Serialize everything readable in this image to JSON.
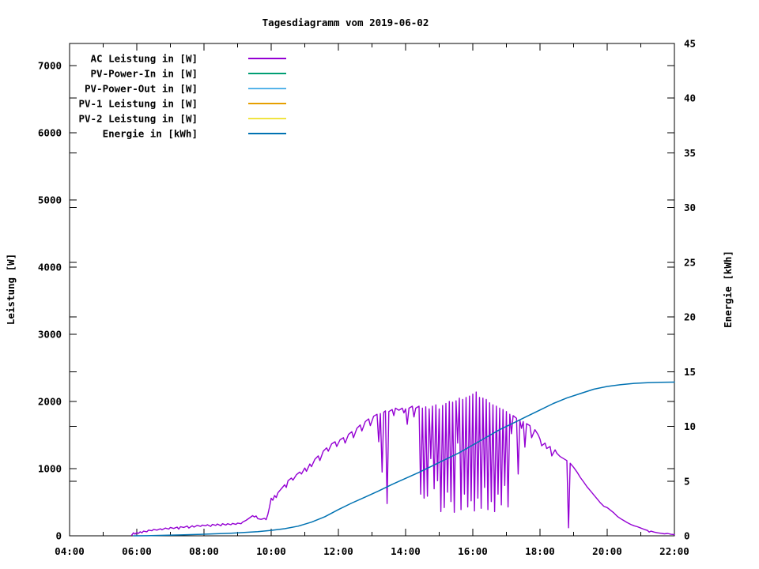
{
  "chart_data": {
    "type": "line",
    "title": "Tagesdiagramm vom 2019-06-02",
    "x_axis": {
      "range_hours": [
        4,
        22
      ],
      "major": [
        {
          "hour": 4,
          "label": "04:00"
        },
        {
          "hour": 6,
          "label": "06:00"
        },
        {
          "hour": 8,
          "label": "08:00"
        },
        {
          "hour": 10,
          "label": "10:00"
        },
        {
          "hour": 12,
          "label": "12:00"
        },
        {
          "hour": 14,
          "label": "14:00"
        },
        {
          "hour": 16,
          "label": "16:00"
        },
        {
          "hour": 18,
          "label": "18:00"
        },
        {
          "hour": 20,
          "label": "20:00"
        },
        {
          "hour": 22,
          "label": "22:00"
        }
      ],
      "minor_hours": [
        5,
        7,
        9,
        11,
        13,
        15,
        17,
        19,
        21
      ]
    },
    "y_left": {
      "label": "Leistung [W]",
      "range": [
        0,
        7330
      ],
      "ticks": [
        0,
        1000,
        2000,
        3000,
        4000,
        5000,
        6000,
        7000
      ]
    },
    "y_right": {
      "label": "Energie [kWh]",
      "range": [
        0,
        45
      ],
      "ticks": [
        0,
        5,
        10,
        15,
        20,
        25,
        30,
        35,
        40,
        45
      ]
    },
    "legend": [
      {
        "label": "AC Leistung in [W]",
        "color": "#9400d3"
      },
      {
        "label": "PV-Power-In in [W]",
        "color": "#009e73"
      },
      {
        "label": "PV-Power-Out in [W]",
        "color": "#56b4e9"
      },
      {
        "label": "PV-1 Leistung in [W]",
        "color": "#e69f00"
      },
      {
        "label": "PV-2 Leistung in [W]",
        "color": "#f0e442"
      },
      {
        "label": "Energie in [kWh]",
        "color": "#0072b2"
      }
    ],
    "series": [
      {
        "name": "AC Leistung in [W]",
        "color": "#9400d3",
        "axis": "left",
        "width": 1.4,
        "points": [
          [
            5.85,
            10
          ],
          [
            5.9,
            45
          ],
          [
            5.95,
            25
          ],
          [
            6.0,
            50
          ],
          [
            6.05,
            35
          ],
          [
            6.1,
            60
          ],
          [
            6.15,
            45
          ],
          [
            6.2,
            70
          ],
          [
            6.3,
            60
          ],
          [
            6.35,
            85
          ],
          [
            6.45,
            75
          ],
          [
            6.5,
            95
          ],
          [
            6.6,
            85
          ],
          [
            6.7,
            105
          ],
          [
            6.75,
            90
          ],
          [
            6.85,
            115
          ],
          [
            6.95,
            100
          ],
          [
            7.0,
            125
          ],
          [
            7.1,
            110
          ],
          [
            7.2,
            130
          ],
          [
            7.25,
            100
          ],
          [
            7.3,
            135
          ],
          [
            7.4,
            125
          ],
          [
            7.5,
            145
          ],
          [
            7.55,
            115
          ],
          [
            7.65,
            150
          ],
          [
            7.7,
            130
          ],
          [
            7.8,
            155
          ],
          [
            7.9,
            140
          ],
          [
            7.95,
            160
          ],
          [
            8.05,
            150
          ],
          [
            8.1,
            165
          ],
          [
            8.2,
            140
          ],
          [
            8.25,
            170
          ],
          [
            8.35,
            155
          ],
          [
            8.4,
            175
          ],
          [
            8.5,
            150
          ],
          [
            8.55,
            180
          ],
          [
            8.65,
            160
          ],
          [
            8.7,
            180
          ],
          [
            8.8,
            165
          ],
          [
            8.85,
            185
          ],
          [
            8.95,
            170
          ],
          [
            9.0,
            190
          ],
          [
            9.1,
            180
          ],
          [
            9.15,
            205
          ],
          [
            9.25,
            230
          ],
          [
            9.35,
            265
          ],
          [
            9.45,
            300
          ],
          [
            9.5,
            280
          ],
          [
            9.55,
            295
          ],
          [
            9.6,
            255
          ],
          [
            9.7,
            245
          ],
          [
            9.8,
            260
          ],
          [
            9.85,
            240
          ],
          [
            9.9,
            320
          ],
          [
            9.95,
            430
          ],
          [
            10.0,
            560
          ],
          [
            10.05,
            530
          ],
          [
            10.1,
            600
          ],
          [
            10.15,
            570
          ],
          [
            10.2,
            640
          ],
          [
            10.3,
            700
          ],
          [
            10.4,
            760
          ],
          [
            10.45,
            720
          ],
          [
            10.5,
            820
          ],
          [
            10.6,
            860
          ],
          [
            10.65,
            830
          ],
          [
            10.75,
            910
          ],
          [
            10.85,
            950
          ],
          [
            10.9,
            920
          ],
          [
            11.0,
            1010
          ],
          [
            11.05,
            960
          ],
          [
            11.15,
            1070
          ],
          [
            11.2,
            1030
          ],
          [
            11.3,
            1140
          ],
          [
            11.4,
            1190
          ],
          [
            11.45,
            1120
          ],
          [
            11.55,
            1260
          ],
          [
            11.65,
            1310
          ],
          [
            11.7,
            1260
          ],
          [
            11.8,
            1370
          ],
          [
            11.9,
            1400
          ],
          [
            11.95,
            1330
          ],
          [
            12.05,
            1430
          ],
          [
            12.15,
            1460
          ],
          [
            12.2,
            1380
          ],
          [
            12.3,
            1510
          ],
          [
            12.4,
            1550
          ],
          [
            12.45,
            1460
          ],
          [
            12.55,
            1600
          ],
          [
            12.65,
            1650
          ],
          [
            12.7,
            1560
          ],
          [
            12.8,
            1700
          ],
          [
            12.9,
            1740
          ],
          [
            12.95,
            1640
          ],
          [
            13.05,
            1780
          ],
          [
            13.15,
            1810
          ],
          [
            13.2,
            1400
          ],
          [
            13.25,
            1820
          ],
          [
            13.3,
            950
          ],
          [
            13.35,
            1840
          ],
          [
            13.4,
            1860
          ],
          [
            13.45,
            480
          ],
          [
            13.5,
            1850
          ],
          [
            13.6,
            1880
          ],
          [
            13.65,
            1790
          ],
          [
            13.7,
            1900
          ],
          [
            13.8,
            1870
          ],
          [
            13.9,
            1900
          ],
          [
            13.95,
            1830
          ],
          [
            14.0,
            1890
          ],
          [
            14.05,
            1660
          ],
          [
            14.1,
            1900
          ],
          [
            14.2,
            1930
          ],
          [
            14.25,
            1770
          ],
          [
            14.3,
            1900
          ],
          [
            14.4,
            1930
          ],
          [
            14.45,
            620
          ],
          [
            14.5,
            1900
          ],
          [
            14.55,
            560
          ],
          [
            14.6,
            1920
          ],
          [
            14.65,
            590
          ],
          [
            14.7,
            1890
          ],
          [
            14.75,
            1150
          ],
          [
            14.8,
            1930
          ],
          [
            14.85,
            700
          ],
          [
            14.9,
            1950
          ],
          [
            14.95,
            820
          ],
          [
            15.0,
            1890
          ],
          [
            15.05,
            360
          ],
          [
            15.1,
            1940
          ],
          [
            15.15,
            420
          ],
          [
            15.2,
            1970
          ],
          [
            15.25,
            650
          ],
          [
            15.3,
            2000
          ],
          [
            15.35,
            510
          ],
          [
            15.4,
            1990
          ],
          [
            15.45,
            350
          ],
          [
            15.5,
            2010
          ],
          [
            15.55,
            1380
          ],
          [
            15.6,
            2050
          ],
          [
            15.65,
            390
          ],
          [
            15.7,
            2030
          ],
          [
            15.75,
            620
          ],
          [
            15.8,
            2060
          ],
          [
            15.85,
            430
          ],
          [
            15.9,
            2080
          ],
          [
            15.95,
            520
          ],
          [
            16.0,
            2110
          ],
          [
            16.05,
            370
          ],
          [
            16.1,
            2140
          ],
          [
            16.15,
            560
          ],
          [
            16.2,
            2060
          ],
          [
            16.25,
            410
          ],
          [
            16.3,
            2050
          ],
          [
            16.35,
            720
          ],
          [
            16.4,
            2030
          ],
          [
            16.45,
            390
          ],
          [
            16.5,
            1980
          ],
          [
            16.55,
            510
          ],
          [
            16.6,
            1950
          ],
          [
            16.65,
            360
          ],
          [
            16.7,
            1930
          ],
          [
            16.75,
            620
          ],
          [
            16.8,
            1900
          ],
          [
            16.85,
            460
          ],
          [
            16.9,
            1880
          ],
          [
            16.95,
            750
          ],
          [
            17.0,
            1850
          ],
          [
            17.05,
            430
          ],
          [
            17.1,
            1810
          ],
          [
            17.15,
            1520
          ],
          [
            17.2,
            1790
          ],
          [
            17.3,
            1750
          ],
          [
            17.35,
            920
          ],
          [
            17.4,
            1720
          ],
          [
            17.45,
            1600
          ],
          [
            17.5,
            1700
          ],
          [
            17.55,
            1320
          ],
          [
            17.6,
            1670
          ],
          [
            17.7,
            1640
          ],
          [
            17.75,
            1460
          ],
          [
            17.85,
            1580
          ],
          [
            17.95,
            1500
          ],
          [
            18.0,
            1440
          ],
          [
            18.05,
            1340
          ],
          [
            18.15,
            1380
          ],
          [
            18.2,
            1300
          ],
          [
            18.3,
            1330
          ],
          [
            18.35,
            1190
          ],
          [
            18.45,
            1280
          ],
          [
            18.5,
            1230
          ],
          [
            18.6,
            1180
          ],
          [
            18.7,
            1150
          ],
          [
            18.8,
            1120
          ],
          [
            18.85,
            120
          ],
          [
            18.9,
            1080
          ],
          [
            19.0,
            1020
          ],
          [
            19.1,
            950
          ],
          [
            19.2,
            870
          ],
          [
            19.3,
            800
          ],
          [
            19.4,
            730
          ],
          [
            19.5,
            670
          ],
          [
            19.6,
            610
          ],
          [
            19.7,
            550
          ],
          [
            19.8,
            490
          ],
          [
            19.9,
            440
          ],
          [
            20.0,
            420
          ],
          [
            20.1,
            380
          ],
          [
            20.2,
            340
          ],
          [
            20.3,
            290
          ],
          [
            20.4,
            255
          ],
          [
            20.5,
            225
          ],
          [
            20.6,
            195
          ],
          [
            20.7,
            170
          ],
          [
            20.8,
            150
          ],
          [
            20.9,
            135
          ],
          [
            21.0,
            115
          ],
          [
            21.1,
            95
          ],
          [
            21.2,
            80
          ],
          [
            21.25,
            55
          ],
          [
            21.3,
            70
          ],
          [
            21.4,
            55
          ],
          [
            21.5,
            45
          ],
          [
            21.6,
            38
          ],
          [
            21.7,
            30
          ],
          [
            21.8,
            35
          ],
          [
            21.9,
            22
          ],
          [
            22.0,
            18
          ]
        ]
      },
      {
        "name": "Energie in [kWh]",
        "color": "#0072b2",
        "axis": "right",
        "width": 1.5,
        "points": [
          [
            5.9,
            0
          ],
          [
            6.3,
            0.01
          ],
          [
            6.8,
            0.04
          ],
          [
            7.3,
            0.08
          ],
          [
            7.8,
            0.12
          ],
          [
            8.3,
            0.18
          ],
          [
            8.8,
            0.24
          ],
          [
            9.2,
            0.3
          ],
          [
            9.6,
            0.38
          ],
          [
            10.0,
            0.5
          ],
          [
            10.4,
            0.65
          ],
          [
            10.8,
            0.88
          ],
          [
            11.2,
            1.25
          ],
          [
            11.6,
            1.75
          ],
          [
            12.0,
            2.4
          ],
          [
            12.4,
            3.0
          ],
          [
            12.8,
            3.55
          ],
          [
            13.2,
            4.1
          ],
          [
            13.6,
            4.7
          ],
          [
            14.0,
            5.25
          ],
          [
            14.4,
            5.8
          ],
          [
            14.8,
            6.4
          ],
          [
            15.2,
            7.0
          ],
          [
            15.6,
            7.6
          ],
          [
            16.0,
            8.3
          ],
          [
            16.4,
            9.0
          ],
          [
            16.8,
            9.7
          ],
          [
            17.2,
            10.3
          ],
          [
            17.6,
            10.9
          ],
          [
            18.0,
            11.5
          ],
          [
            18.4,
            12.1
          ],
          [
            18.8,
            12.6
          ],
          [
            19.2,
            13.0
          ],
          [
            19.6,
            13.4
          ],
          [
            20.0,
            13.65
          ],
          [
            20.4,
            13.82
          ],
          [
            20.8,
            13.93
          ],
          [
            21.2,
            14.0
          ],
          [
            21.6,
            14.03
          ],
          [
            22.0,
            14.05
          ]
        ]
      }
    ]
  }
}
